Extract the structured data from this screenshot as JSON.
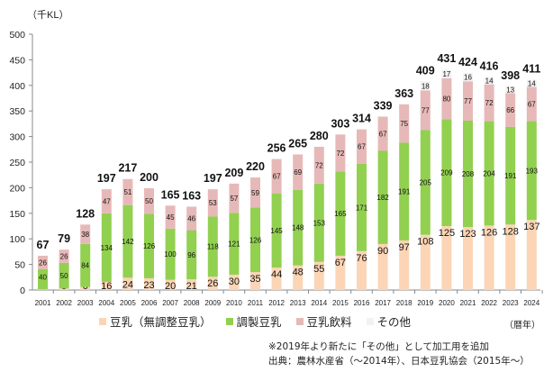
{
  "chart_data": {
    "type": "bar",
    "stacked": true,
    "ylabel": "（千KL）",
    "xlabel": "（暦年）",
    "ylim": [
      0,
      500
    ],
    "yticks": [
      0,
      50,
      100,
      150,
      200,
      250,
      300,
      350,
      400,
      450,
      500
    ],
    "grid": false,
    "legend_position": "bottom",
    "categories": [
      "2001",
      "2002",
      "2003",
      "2004",
      "2005",
      "2006",
      "2007",
      "2008",
      "2009",
      "2010",
      "2011",
      "2012",
      "2013",
      "2014",
      "2015",
      "2016",
      "2017",
      "2018",
      "2019",
      "2020",
      "2021",
      "2022",
      "2023",
      "2024"
    ],
    "series": [
      {
        "name": "豆乳（無調整豆乳）",
        "color": "#FBD5B5",
        "values": [
          1,
          3,
          6,
          16,
          24,
          23,
          20,
          21,
          26,
          30,
          35,
          44,
          48,
          55,
          67,
          76,
          90,
          97,
          108,
          125,
          123,
          126,
          128,
          137
        ]
      },
      {
        "name": "調製豆乳",
        "color": "#92D050",
        "values": [
          40,
          50,
          84,
          134,
          142,
          126,
          100,
          96,
          118,
          121,
          126,
          145,
          148,
          153,
          165,
          171,
          182,
          191,
          205,
          209,
          208,
          204,
          191,
          193
        ]
      },
      {
        "name": "豆乳飲料",
        "color": "#E6B9B8",
        "values": [
          26,
          26,
          38,
          47,
          51,
          50,
          45,
          46,
          53,
          57,
          59,
          67,
          69,
          72,
          72,
          67,
          67,
          75,
          77,
          80,
          77,
          72,
          66,
          67
        ]
      },
      {
        "name": "その他",
        "color": "#F2F2F2",
        "values": [
          null,
          null,
          null,
          null,
          null,
          null,
          null,
          null,
          null,
          null,
          null,
          null,
          null,
          null,
          null,
          null,
          null,
          null,
          18,
          17,
          16,
          14,
          13,
          14
        ]
      }
    ],
    "totals": [
      67,
      79,
      128,
      197,
      217,
      200,
      165,
      163,
      197,
      209,
      220,
      256,
      265,
      280,
      303,
      314,
      339,
      363,
      409,
      431,
      424,
      416,
      398,
      411
    ]
  },
  "notes": {
    "line1": "※2019年より新たに「その他」として加工用を追加",
    "line2": "出典：農林水産省（～2014年）、日本豆乳協会（2015年～）"
  }
}
